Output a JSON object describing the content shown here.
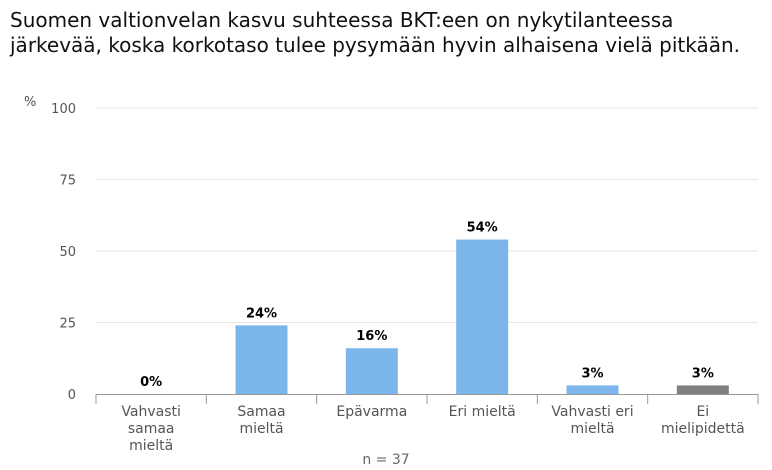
{
  "title": "Suomen valtionvelan kasvu suhteessa BKT:een on nykytilanteessa järkevää, koska korkotaso tulee pysymään hyvin alhaisena vielä pitkään.",
  "unit_label": "%",
  "n_label": "n = 37",
  "chart_data": {
    "type": "bar",
    "title": "Suomen valtionvelan kasvu suhteessa BKT:een on nykytilanteessa järkevää, koska korkotaso tulee pysymään hyvin alhaisena vielä pitkään.",
    "ylabel": "%",
    "ylim": [
      0,
      100
    ],
    "yticks": [
      0,
      25,
      50,
      75,
      100
    ],
    "grid": true,
    "categories": [
      [
        "Vahvasti",
        "samaa",
        "mieltä"
      ],
      [
        "Samaa",
        "mieltä"
      ],
      [
        "Epävarma"
      ],
      [
        "Eri mieltä"
      ],
      [
        "Vahvasti eri",
        "mieltä"
      ],
      [
        "Ei",
        "mielipidettä"
      ]
    ],
    "values": [
      0,
      24,
      16,
      54,
      3,
      3
    ],
    "value_labels": [
      "0%",
      "24%",
      "16%",
      "54%",
      "3%",
      "3%"
    ],
    "colors": [
      "#7cb5ec",
      "#7cb5ec",
      "#7cb5ec",
      "#7cb5ec",
      "#7cb5ec",
      "#808080"
    ]
  }
}
